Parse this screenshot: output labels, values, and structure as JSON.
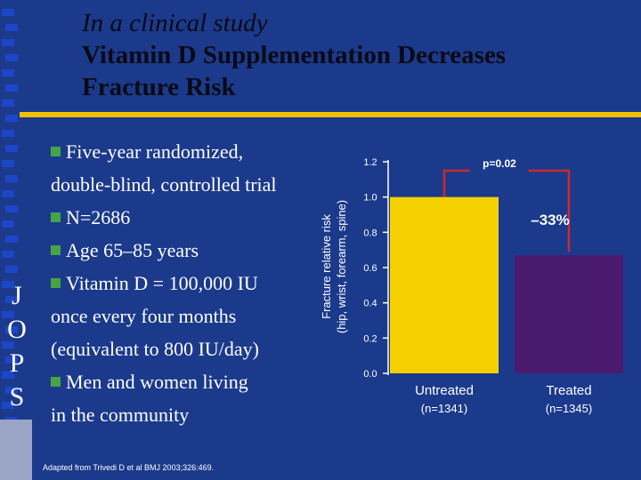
{
  "title": {
    "line1": "In a clinical study",
    "line2": "Vitamin D Supplementation Decreases",
    "line3": "Fracture Risk"
  },
  "side_letters": [
    "J",
    "O",
    "P",
    "S"
  ],
  "bullets": [
    {
      "lines": [
        "Five-year randomized,",
        "double-blind, controlled trial"
      ]
    },
    {
      "lines": [
        "N=2686"
      ]
    },
    {
      "lines": [
        "Age 65–85 years"
      ]
    },
    {
      "lines": [
        "Vitamin D = 100,000 IU",
        "once every four months",
        "(equivalent to 800 IU/day)"
      ]
    },
    {
      "lines": [
        "Men and women living",
        "in the community"
      ]
    }
  ],
  "citation": "Adapted from Trivedi D et al BMJ 2003;326:469.",
  "colors": {
    "background": "#1b3a8c",
    "accent_rule": "#f2c200",
    "untreated_bar": "#f5d000",
    "treated_bar": "#4a1a6e",
    "bullet": "#45a545",
    "bracket": "#cc2a2a"
  },
  "chart_data": {
    "type": "bar",
    "ylabel_line1": "Fracture relative risk",
    "ylabel_line2": "(hip, wrist, forearm, spine)",
    "ylim": [
      0,
      1.2
    ],
    "yticks": [
      "0.0",
      "0.2",
      "0.4",
      "0.6",
      "0.8",
      "1.0",
      "1.2"
    ],
    "categories": [
      {
        "label": "Untreated",
        "sub": "(n=1341)"
      },
      {
        "label": "Treated",
        "sub": "(n=1345)"
      }
    ],
    "values": [
      1.0,
      0.67
    ],
    "annotations": {
      "pvalue": "p=0.02",
      "reduction": "–33%"
    }
  }
}
